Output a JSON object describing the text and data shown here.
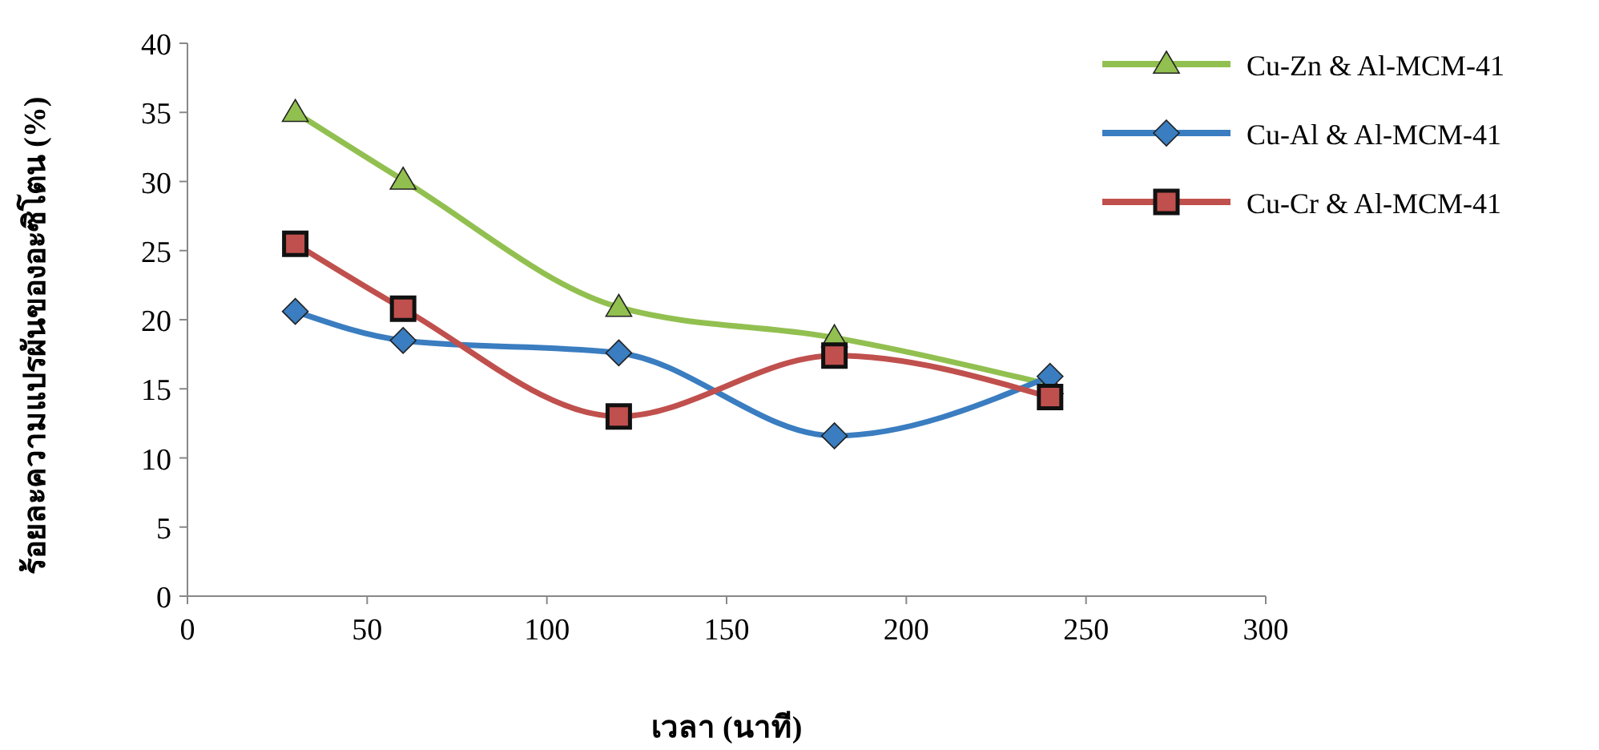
{
  "chart_data": {
    "type": "line",
    "xlabel": "เวลา (นาที)",
    "ylabel": "ร้อยละความแปรผันของอะซิโตน (%)",
    "x": [
      30,
      60,
      120,
      180,
      240
    ],
    "series": [
      {
        "name": "Cu-Zn & Al-MCM-41",
        "color": "#92c050",
        "marker": "triangle",
        "values": [
          35.0,
          30.1,
          20.9,
          18.7,
          15.3
        ]
      },
      {
        "name": "Cu-Al & Al-MCM-41",
        "color": "#3a7dc0",
        "marker": "diamond",
        "values": [
          20.6,
          18.5,
          17.6,
          11.6,
          15.9
        ]
      },
      {
        "name": "Cu-Cr & Al-MCM-41",
        "color": "#c0504d",
        "marker": "square",
        "values": [
          25.5,
          20.8,
          13.0,
          17.4,
          14.4
        ]
      }
    ],
    "xlim": [
      0,
      300
    ],
    "xticks": [
      0,
      50,
      100,
      150,
      200,
      250,
      300
    ],
    "ylim": [
      0,
      40
    ],
    "yticks": [
      0,
      5,
      10,
      15,
      20,
      25,
      30,
      35,
      40
    ],
    "grid": false,
    "legend": "top right",
    "line_style": "solid"
  }
}
